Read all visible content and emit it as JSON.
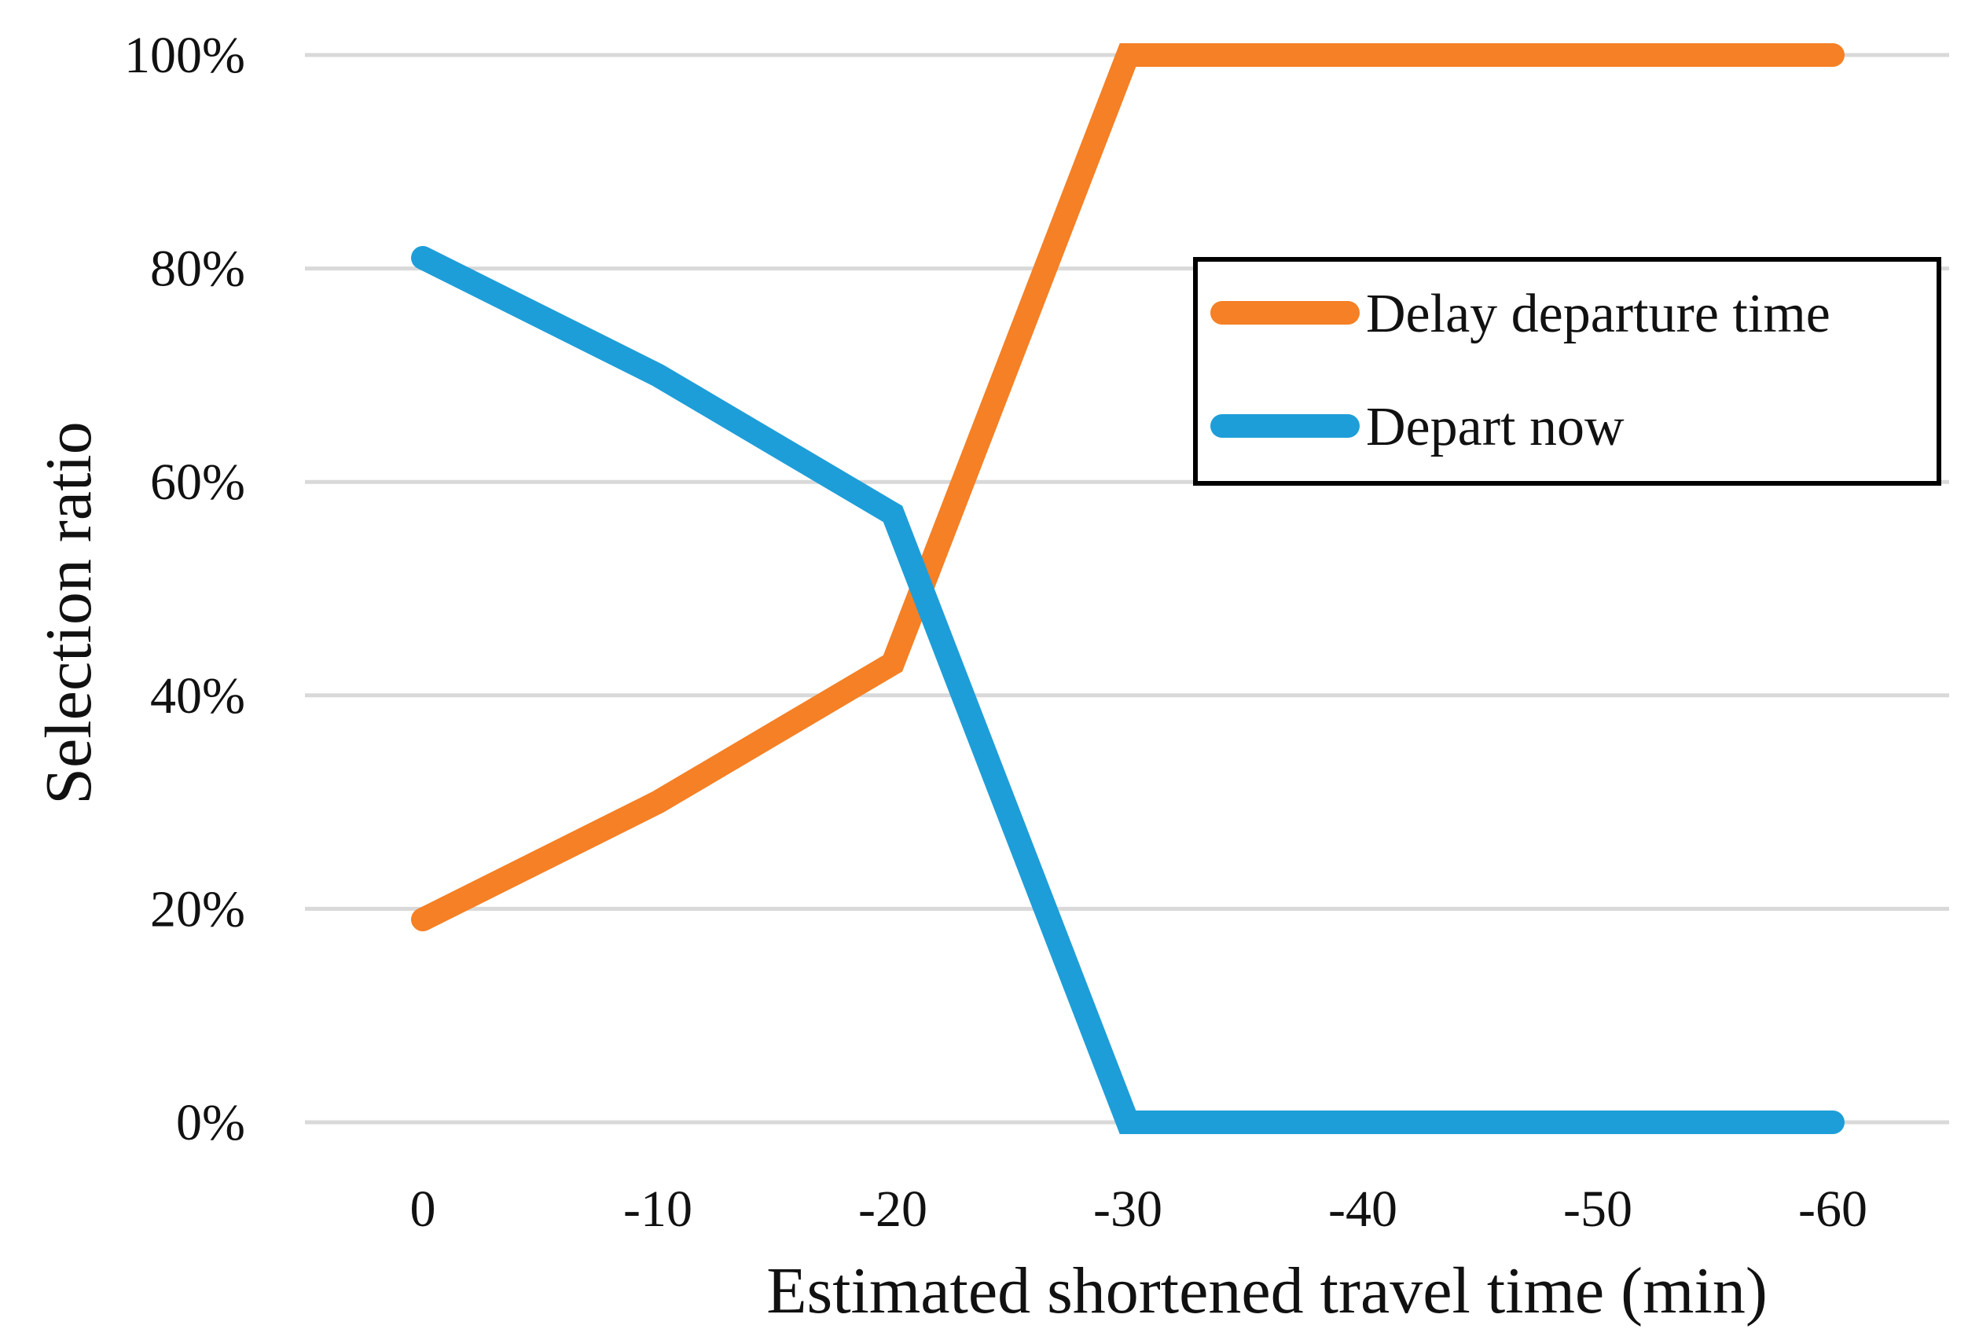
{
  "chart_data": {
    "type": "line",
    "title": "",
    "xlabel": "Estimated shortened travel time (min)",
    "ylabel": "Selection ratio",
    "categories": [
      "0",
      "-10",
      "-20",
      "-30",
      "-40",
      "-50",
      "-60"
    ],
    "y_ticks": [
      "0%",
      "20%",
      "40%",
      "60%",
      "80%",
      "100%"
    ],
    "ylim": [
      0,
      100
    ],
    "grid": "horizontal",
    "legend_position": "top-right",
    "series": [
      {
        "name": "Delay departure time",
        "color": "#F58025",
        "values": [
          19,
          30,
          43,
          100,
          100,
          100,
          100
        ]
      },
      {
        "name": "Depart now",
        "color": "#1E9ED8",
        "values": [
          81,
          70,
          57,
          0,
          0,
          0,
          0
        ]
      }
    ]
  }
}
